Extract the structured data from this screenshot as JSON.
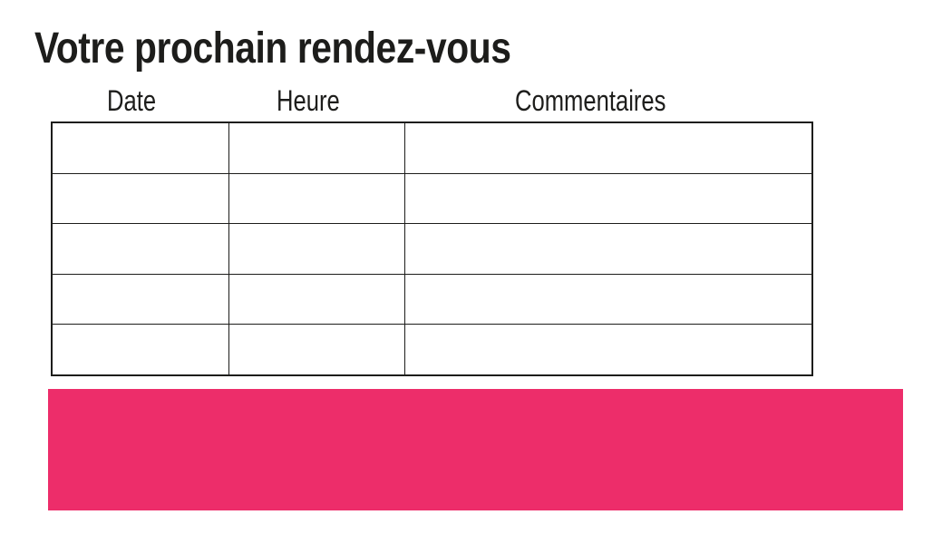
{
  "page": {
    "title": "Votre prochain rendez-vous"
  },
  "table": {
    "columns": [
      {
        "label": "Date"
      },
      {
        "label": "Heure"
      },
      {
        "label": "Commentaires"
      }
    ],
    "row_count": 5,
    "rows": [
      [
        "",
        "",
        ""
      ],
      [
        "",
        "",
        ""
      ],
      [
        "",
        "",
        ""
      ],
      [
        "",
        "",
        ""
      ],
      [
        "",
        "",
        ""
      ]
    ]
  },
  "colors": {
    "accent-pink": "#ED2D6A",
    "line": "#1D1D1B",
    "text": "#1D1D1B",
    "page-background": "#FFFFFF"
  }
}
